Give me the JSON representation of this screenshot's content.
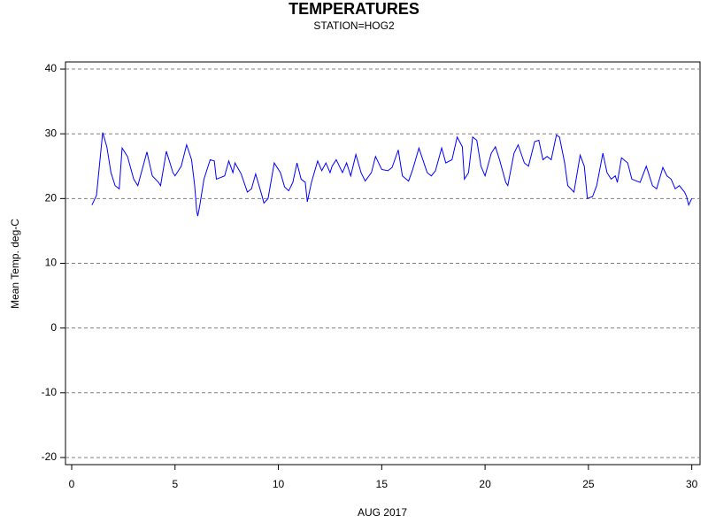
{
  "chart_data": {
    "type": "line",
    "title": "TEMPERATURES",
    "subtitle": "STATION=HOG2",
    "x_label": "AUG 2017",
    "y_label": "Mean Temp. deg-C",
    "xlim": [
      -0.3,
      30.4
    ],
    "ylim": [
      -21.1,
      41.1
    ],
    "xticks": [
      0,
      5,
      10,
      15,
      20,
      25,
      30
    ],
    "yticks": [
      -20,
      -10,
      0,
      10,
      20,
      30,
      40
    ],
    "grid": true,
    "series": [
      {
        "name": "Mean Temp",
        "color": "#0000ff",
        "x": [
          0.98,
          1.2,
          1.5,
          1.7,
          1.9,
          2.1,
          2.3,
          2.44,
          2.7,
          3.0,
          3.2,
          3.64,
          3.9,
          4.2,
          4.3,
          4.58,
          4.9,
          5.0,
          5.3,
          5.56,
          5.8,
          5.95,
          6.05,
          6.1,
          6.2,
          6.4,
          6.7,
          6.9,
          7.0,
          7.4,
          7.6,
          7.8,
          7.9,
          8.2,
          8.5,
          8.7,
          8.9,
          9.2,
          9.3,
          9.5,
          9.8,
          10.1,
          10.3,
          10.5,
          10.7,
          10.9,
          11.1,
          11.3,
          11.4,
          11.6,
          11.9,
          12.1,
          12.3,
          12.5,
          12.6,
          12.8,
          13.1,
          13.3,
          13.5,
          13.75,
          14.0,
          14.2,
          14.5,
          14.7,
          15.0,
          15.3,
          15.5,
          15.8,
          16.0,
          16.3,
          16.5,
          16.8,
          17.2,
          17.4,
          17.6,
          17.9,
          18.1,
          18.4,
          18.65,
          18.9,
          19.0,
          19.2,
          19.4,
          19.6,
          19.8,
          20.0,
          20.3,
          20.5,
          20.7,
          21.0,
          21.1,
          21.4,
          21.6,
          21.9,
          22.1,
          22.4,
          22.6,
          22.8,
          23.0,
          23.2,
          23.45,
          23.6,
          23.85,
          24.0,
          24.3,
          24.6,
          24.8,
          24.95,
          25.2,
          25.4,
          25.7,
          25.9,
          26.1,
          26.3,
          26.4,
          26.6,
          26.9,
          27.1,
          27.5,
          27.8,
          27.9,
          28.1,
          28.3,
          28.6,
          28.8,
          29.0,
          29.2,
          29.4,
          29.65,
          29.75,
          29.85,
          30.0
        ],
        "values": [
          19,
          20.5,
          30.2,
          28,
          24,
          22,
          21.5,
          27.8,
          26.5,
          23,
          22,
          27.2,
          23.5,
          22.5,
          22,
          27.3,
          24,
          23.5,
          25,
          28.3,
          26,
          22,
          18,
          17.3,
          19,
          23,
          26,
          25.8,
          23,
          23.5,
          25.8,
          24,
          25.5,
          23.8,
          21,
          21.5,
          23.8,
          20.5,
          19.3,
          20,
          25.5,
          24,
          21.8,
          21.2,
          22.5,
          25.5,
          23,
          22.5,
          19.5,
          22.5,
          25.8,
          24.3,
          25.5,
          24,
          25,
          26,
          24,
          25.5,
          23.5,
          26.8,
          24,
          22.7,
          24,
          26.5,
          24.5,
          24.3,
          24.8,
          27.5,
          23.5,
          22.7,
          24.5,
          27.8,
          24,
          23.5,
          24.3,
          27.8,
          25.5,
          26,
          29.5,
          28,
          23,
          24,
          29.5,
          29,
          25,
          23.5,
          27,
          28,
          26,
          22.5,
          22,
          27,
          28.3,
          25.5,
          25,
          28.8,
          29,
          26,
          26.5,
          26,
          29.8,
          29.5,
          25.5,
          22,
          21,
          26.7,
          25,
          20,
          20.3,
          22,
          27,
          24,
          23,
          23.5,
          22.5,
          26.3,
          25.5,
          23,
          22.5,
          25,
          24,
          22,
          21.5,
          24.8,
          23.5,
          23,
          21.5,
          22,
          21,
          20.3,
          19,
          20
        ]
      }
    ]
  }
}
